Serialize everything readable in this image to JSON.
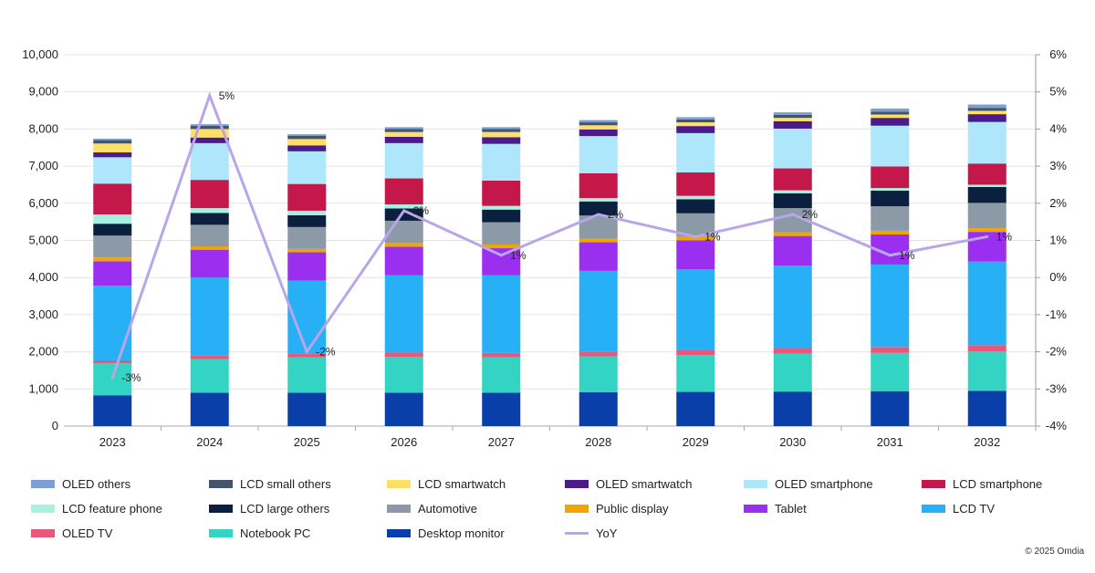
{
  "chart_data": {
    "type": "bar",
    "stacked": true,
    "categories": [
      "2023",
      "2024",
      "2025",
      "2026",
      "2027",
      "2028",
      "2029",
      "2030",
      "2031",
      "2032"
    ],
    "y_left": {
      "ylim": [
        0,
        10000
      ],
      "ticks": [
        "0",
        "1,000",
        "2,000",
        "3,000",
        "4,000",
        "5,000",
        "6,000",
        "7,000",
        "8,000",
        "9,000",
        "10,000"
      ]
    },
    "y_right": {
      "ylim": [
        -4,
        6
      ],
      "ticks": [
        "-4%",
        "-3%",
        "-2%",
        "-1%",
        "0%",
        "1%",
        "2%",
        "3%",
        "4%",
        "5%",
        "6%"
      ]
    },
    "grid": true,
    "legend_placement": "bottom",
    "series": [
      {
        "name": "Desktop monitor",
        "color": "#0a3ea8",
        "values": [
          830,
          900,
          900,
          900,
          900,
          910,
          920,
          930,
          940,
          950
        ]
      },
      {
        "name": "Notebook PC",
        "color": "#33d4c4",
        "values": [
          860,
          900,
          950,
          960,
          950,
          970,
          990,
          1020,
          1030,
          1060
        ]
      },
      {
        "name": "OLED TV",
        "color": "#e8587a",
        "values": [
          80,
          100,
          110,
          120,
          120,
          130,
          140,
          150,
          160,
          170
        ]
      },
      {
        "name": "LCD TV",
        "color": "#27b0f5",
        "values": [
          2010,
          2100,
          1960,
          2080,
          2090,
          2170,
          2170,
          2220,
          2220,
          2250
        ]
      },
      {
        "name": "Tablet",
        "color": "#9b2ff0",
        "values": [
          660,
          750,
          760,
          770,
          730,
          770,
          780,
          800,
          810,
          800
        ]
      },
      {
        "name": "Public display",
        "color": "#f0a500",
        "values": [
          100,
          90,
          90,
          100,
          100,
          100,
          100,
          100,
          100,
          100
        ]
      },
      {
        "name": "Automotive",
        "color": "#8c99a6",
        "values": [
          590,
          580,
          590,
          600,
          600,
          620,
          630,
          650,
          660,
          680
        ]
      },
      {
        "name": "LCD large others",
        "color": "#0b1f3f",
        "values": [
          320,
          320,
          320,
          330,
          340,
          380,
          380,
          400,
          420,
          430
        ]
      },
      {
        "name": "LCD feature phone",
        "color": "#a8f0e0",
        "values": [
          250,
          130,
          120,
          110,
          100,
          90,
          90,
          80,
          70,
          60
        ]
      },
      {
        "name": "LCD smartphone",
        "color": "#c4174a",
        "values": [
          830,
          760,
          720,
          700,
          680,
          670,
          630,
          590,
          580,
          570
        ]
      },
      {
        "name": "OLED smartphone",
        "color": "#aee6fb",
        "values": [
          710,
          990,
          880,
          950,
          990,
          1000,
          1060,
          1070,
          1100,
          1120
        ]
      },
      {
        "name": "OLED smartwatch",
        "color": "#4b1a8c",
        "values": [
          130,
          150,
          160,
          170,
          180,
          180,
          190,
          200,
          210,
          210
        ]
      },
      {
        "name": "LCD smartwatch",
        "color": "#ffe066",
        "values": [
          240,
          230,
          170,
          130,
          140,
          110,
          100,
          90,
          90,
          90
        ]
      },
      {
        "name": "LCD small others",
        "color": "#44546a",
        "values": [
          90,
          90,
          90,
          80,
          80,
          80,
          80,
          80,
          80,
          80
        ]
      },
      {
        "name": "OLED others",
        "color": "#7a9fd6",
        "values": [
          40,
          40,
          40,
          50,
          50,
          60,
          60,
          70,
          80,
          90
        ]
      }
    ],
    "line": {
      "name": "YoY",
      "color": "#b9a6e8",
      "axis": "right",
      "values": [
        -2.7,
        4.9,
        -2.0,
        1.8,
        0.6,
        1.7,
        1.1,
        1.7,
        0.6,
        1.1
      ],
      "labels": [
        "-3%",
        "5%",
        "-2%",
        "2%",
        "1%",
        "2%",
        "1%",
        "2%",
        "1%",
        "1%"
      ]
    },
    "legend": [
      "OLED others",
      "LCD small others",
      "LCD smartwatch",
      "OLED smartwatch",
      "OLED smartphone",
      "LCD smartphone",
      "LCD feature phone",
      "LCD large others",
      "Automotive",
      "Public display",
      "Tablet",
      "LCD TV",
      "OLED TV",
      "Notebook PC",
      "Desktop monitor",
      "YoY"
    ]
  },
  "footer": {
    "copyright": "© 2025 Omdia"
  }
}
